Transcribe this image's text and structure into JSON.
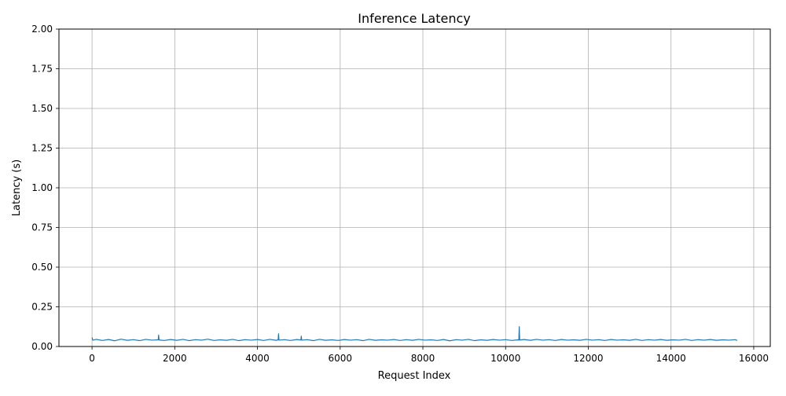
{
  "chart_data": {
    "type": "line",
    "title": "Inference Latency",
    "xlabel": "Request Index",
    "ylabel": "Latency (s)",
    "xlim": [
      -800,
      16400
    ],
    "ylim": [
      0,
      2.0
    ],
    "xticks": [
      0,
      2000,
      4000,
      6000,
      8000,
      10000,
      12000,
      14000,
      16000
    ],
    "xtick_labels": [
      "0",
      "2000",
      "4000",
      "6000",
      "8000",
      "10000",
      "12000",
      "14000",
      "16000"
    ],
    "yticks": [
      0.0,
      0.25,
      0.5,
      0.75,
      1.0,
      1.25,
      1.5,
      1.75,
      2.0
    ],
    "ytick_labels": [
      "0.00",
      "0.25",
      "0.50",
      "0.75",
      "1.00",
      "1.25",
      "1.50",
      "1.75",
      "2.00"
    ],
    "grid": true,
    "series": [
      {
        "color": "#1f77b4",
        "x": [
          0,
          20,
          100,
          250,
          400,
          550,
          700,
          850,
          1000,
          1150,
          1300,
          1450,
          1600,
          1610,
          1620,
          1750,
          1900,
          2050,
          2200,
          2350,
          2500,
          2650,
          2800,
          2950,
          3100,
          3250,
          3400,
          3550,
          3700,
          3850,
          4000,
          4150,
          4300,
          4450,
          4500,
          4510,
          4520,
          4650,
          4800,
          4950,
          5050,
          5060,
          5070,
          5200,
          5350,
          5500,
          5650,
          5800,
          5950,
          6100,
          6250,
          6400,
          6550,
          6700,
          6850,
          7000,
          7150,
          7300,
          7450,
          7600,
          7750,
          7900,
          8050,
          8200,
          8350,
          8500,
          8650,
          8800,
          8950,
          9100,
          9250,
          9400,
          9550,
          9700,
          9850,
          10000,
          10150,
          10300,
          10320,
          10330,
          10340,
          10450,
          10600,
          10750,
          10900,
          11050,
          11200,
          11350,
          11500,
          11650,
          11800,
          11950,
          12100,
          12250,
          12400,
          12550,
          12700,
          12850,
          13000,
          13150,
          13300,
          13450,
          13600,
          13750,
          13900,
          14050,
          14200,
          14350,
          14500,
          14650,
          14800,
          14950,
          15100,
          15250,
          15400,
          15550,
          15600
        ],
        "y": [
          0.057,
          0.04,
          0.045,
          0.038,
          0.044,
          0.036,
          0.046,
          0.039,
          0.043,
          0.037,
          0.045,
          0.04,
          0.042,
          0.072,
          0.041,
          0.038,
          0.044,
          0.039,
          0.045,
          0.037,
          0.043,
          0.04,
          0.046,
          0.038,
          0.042,
          0.039,
          0.045,
          0.037,
          0.043,
          0.04,
          0.044,
          0.038,
          0.045,
          0.039,
          0.042,
          0.08,
          0.04,
          0.043,
          0.038,
          0.044,
          0.041,
          0.065,
          0.04,
          0.043,
          0.037,
          0.045,
          0.039,
          0.042,
          0.038,
          0.044,
          0.04,
          0.043,
          0.037,
          0.045,
          0.039,
          0.042,
          0.04,
          0.044,
          0.038,
          0.043,
          0.039,
          0.045,
          0.04,
          0.042,
          0.038,
          0.044,
          0.036,
          0.043,
          0.04,
          0.045,
          0.037,
          0.042,
          0.039,
          0.044,
          0.04,
          0.043,
          0.038,
          0.042,
          0.04,
          0.125,
          0.041,
          0.044,
          0.039,
          0.045,
          0.04,
          0.043,
          0.038,
          0.044,
          0.04,
          0.042,
          0.039,
          0.045,
          0.04,
          0.043,
          0.038,
          0.044,
          0.04,
          0.042,
          0.039,
          0.045,
          0.038,
          0.043,
          0.04,
          0.044,
          0.039,
          0.042,
          0.04,
          0.045,
          0.038,
          0.043,
          0.04,
          0.044,
          0.039,
          0.042,
          0.04,
          0.043,
          0.038
        ]
      }
    ]
  }
}
